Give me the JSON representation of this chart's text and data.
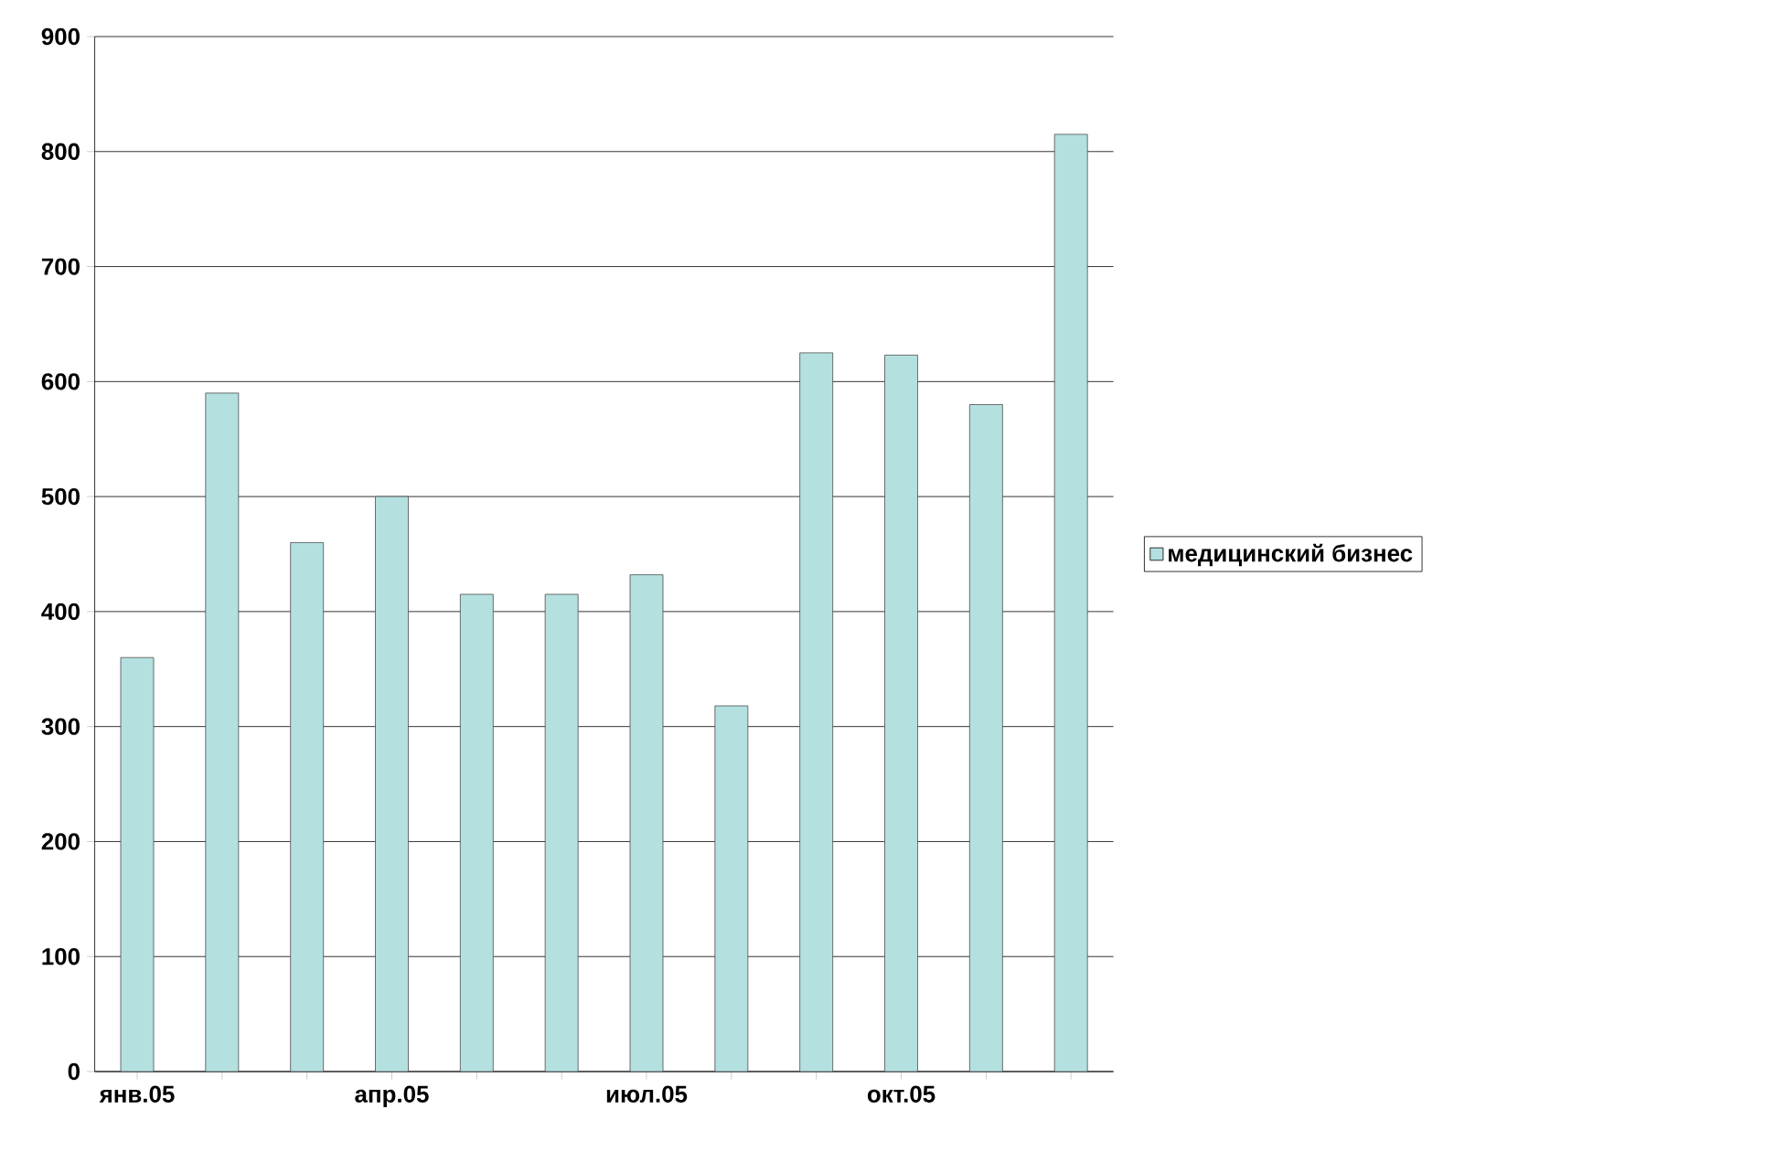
{
  "chart_data": {
    "type": "bar",
    "categories": [
      "янв.05",
      null,
      null,
      "апр.05",
      null,
      null,
      "июл.05",
      null,
      null,
      "окт.05",
      null,
      null
    ],
    "series": [
      {
        "name": "медицинский бизнес",
        "color": "#b4e0e0",
        "values": [
          360,
          590,
          460,
          500,
          415,
          415,
          432,
          318,
          625,
          623,
          580,
          815
        ]
      }
    ],
    "ylim": [
      0,
      900
    ],
    "yticks": [
      0,
      100,
      200,
      300,
      400,
      500,
      600,
      700,
      800,
      900
    ],
    "grid": "y",
    "legend": "right"
  }
}
